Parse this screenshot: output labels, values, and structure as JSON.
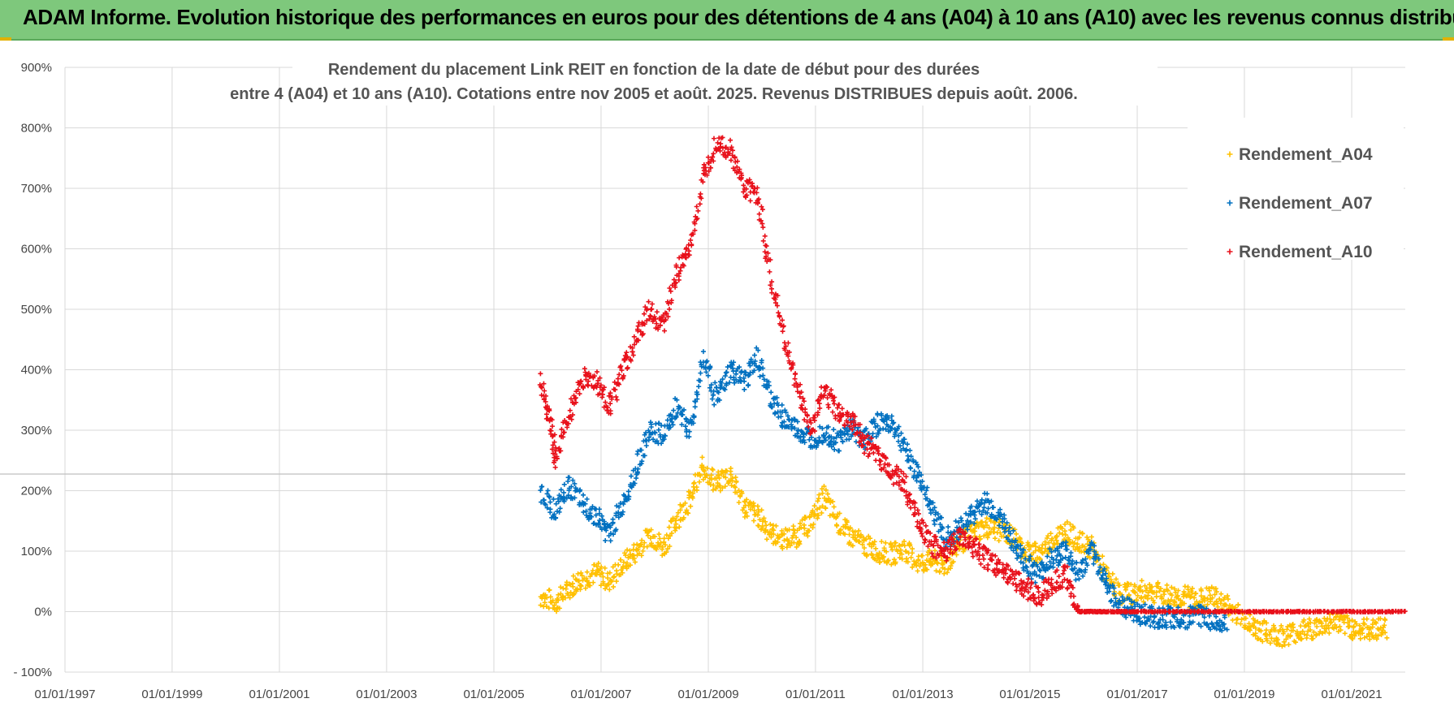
{
  "banner": {
    "title": "ADAM Informe. Evolution historique des performances en euros pour des détentions de 4 ans (A04) à 10 ans (A10) avec les revenus connus distribués"
  },
  "colors": {
    "banner_bg": "#7ec87c",
    "A04": "#ffc000",
    "A07": "#0070c0",
    "A10": "#e8101a",
    "grid": "#d9d9d9"
  },
  "chart_data": {
    "type": "scatter",
    "title_lines": [
      "Rendement du placement Link REIT en fonction de la date de début pour des durées",
      "entre 4 (A04) et 10 ans (A10).  Cotations entre nov 2005 et août. 2025. Revenus DISTRIBUES depuis août. 2006."
    ],
    "x_type": "date",
    "x_range": [
      "1997-01-01",
      "2022-01-01"
    ],
    "x_tick_labels": [
      "01/01/1997",
      "01/01/1999",
      "01/01/2001",
      "01/01/2003",
      "01/01/2005",
      "01/01/2007",
      "01/01/2009",
      "01/01/2011",
      "01/01/2013",
      "01/01/2015",
      "01/01/2017",
      "01/01/2019",
      "01/01/2021"
    ],
    "y_range": [
      -100,
      900
    ],
    "y_tick_labels": [
      "- 100%",
      "0%",
      "100%",
      "200%",
      "300%",
      "400%",
      "500%",
      "600%",
      "700%",
      "800%",
      "900%"
    ],
    "y_unit": "%",
    "grid": true,
    "legend_position": "right",
    "marker": "+",
    "series": [
      {
        "name": "Rendement_A04",
        "color": "#ffc000",
        "points": [
          [
            "2005-11-15",
            25
          ],
          [
            "2006-03-01",
            15
          ],
          [
            "2006-06-01",
            40
          ],
          [
            "2006-09-01",
            55
          ],
          [
            "2006-12-01",
            65
          ],
          [
            "2007-03-01",
            50
          ],
          [
            "2007-06-01",
            80
          ],
          [
            "2007-09-01",
            100
          ],
          [
            "2007-12-01",
            130
          ],
          [
            "2008-03-01",
            105
          ],
          [
            "2008-06-01",
            155
          ],
          [
            "2008-09-01",
            185
          ],
          [
            "2008-12-01",
            240
          ],
          [
            "2009-03-01",
            210
          ],
          [
            "2009-06-01",
            230
          ],
          [
            "2009-09-01",
            175
          ],
          [
            "2009-12-01",
            160
          ],
          [
            "2010-03-01",
            130
          ],
          [
            "2010-06-01",
            120
          ],
          [
            "2010-09-01",
            125
          ],
          [
            "2010-12-01",
            150
          ],
          [
            "2011-03-01",
            190
          ],
          [
            "2011-06-01",
            150
          ],
          [
            "2011-09-01",
            125
          ],
          [
            "2011-12-01",
            110
          ],
          [
            "2012-03-01",
            100
          ],
          [
            "2012-06-01",
            95
          ],
          [
            "2012-09-01",
            105
          ],
          [
            "2012-12-01",
            80
          ],
          [
            "2013-03-01",
            85
          ],
          [
            "2013-06-01",
            75
          ],
          [
            "2013-09-01",
            110
          ],
          [
            "2013-12-01",
            130
          ],
          [
            "2014-03-01",
            140
          ],
          [
            "2014-06-01",
            135
          ],
          [
            "2014-09-01",
            125
          ],
          [
            "2014-12-01",
            100
          ],
          [
            "2015-03-01",
            95
          ],
          [
            "2015-06-01",
            120
          ],
          [
            "2015-09-01",
            135
          ],
          [
            "2015-12-01",
            115
          ],
          [
            "2016-03-01",
            105
          ],
          [
            "2016-06-01",
            60
          ],
          [
            "2016-09-01",
            30
          ],
          [
            "2016-12-01",
            30
          ],
          [
            "2017-03-01",
            35
          ],
          [
            "2017-06-01",
            30
          ],
          [
            "2017-09-01",
            25
          ],
          [
            "2017-12-01",
            25
          ],
          [
            "2018-03-01",
            20
          ],
          [
            "2018-06-01",
            25
          ],
          [
            "2018-09-01",
            10
          ],
          [
            "2018-12-01",
            -5
          ],
          [
            "2019-03-01",
            -25
          ],
          [
            "2019-06-01",
            -35
          ],
          [
            "2019-09-01",
            -40
          ],
          [
            "2019-12-01",
            -35
          ],
          [
            "2020-03-01",
            -30
          ],
          [
            "2020-06-01",
            -25
          ],
          [
            "2020-09-01",
            -15
          ],
          [
            "2020-12-01",
            -25
          ],
          [
            "2021-03-01",
            -30
          ],
          [
            "2021-06-01",
            -28
          ],
          [
            "2021-09-01",
            -27
          ]
        ]
      },
      {
        "name": "Rendement_A07",
        "color": "#0070c0",
        "points": [
          [
            "2005-11-15",
            200
          ],
          [
            "2006-03-01",
            165
          ],
          [
            "2006-06-01",
            210
          ],
          [
            "2006-09-01",
            175
          ],
          [
            "2006-12-01",
            160
          ],
          [
            "2007-03-01",
            125
          ],
          [
            "2007-06-01",
            180
          ],
          [
            "2007-09-01",
            240
          ],
          [
            "2007-12-01",
            300
          ],
          [
            "2008-03-01",
            290
          ],
          [
            "2008-06-01",
            340
          ],
          [
            "2008-09-01",
            300
          ],
          [
            "2008-12-01",
            420
          ],
          [
            "2009-03-01",
            350
          ],
          [
            "2009-06-01",
            400
          ],
          [
            "2009-09-01",
            380
          ],
          [
            "2009-12-01",
            420
          ],
          [
            "2010-03-01",
            350
          ],
          [
            "2010-06-01",
            320
          ],
          [
            "2010-09-01",
            300
          ],
          [
            "2010-12-01",
            285
          ],
          [
            "2011-03-01",
            300
          ],
          [
            "2011-06-01",
            280
          ],
          [
            "2011-09-01",
            305
          ],
          [
            "2011-12-01",
            285
          ],
          [
            "2012-03-01",
            310
          ],
          [
            "2012-06-01",
            315
          ],
          [
            "2012-09-01",
            270
          ],
          [
            "2012-12-01",
            225
          ],
          [
            "2013-03-01",
            175
          ],
          [
            "2013-06-01",
            120
          ],
          [
            "2013-09-01",
            135
          ],
          [
            "2013-12-01",
            160
          ],
          [
            "2014-03-01",
            180
          ],
          [
            "2014-06-01",
            160
          ],
          [
            "2014-09-01",
            120
          ],
          [
            "2014-12-01",
            80
          ],
          [
            "2015-03-01",
            60
          ],
          [
            "2015-06-01",
            90
          ],
          [
            "2015-09-01",
            100
          ],
          [
            "2015-12-01",
            60
          ],
          [
            "2016-03-01",
            100
          ],
          [
            "2016-06-01",
            50
          ],
          [
            "2016-09-01",
            10
          ],
          [
            "2016-12-01",
            0
          ],
          [
            "2017-03-01",
            -5
          ],
          [
            "2017-06-01",
            -10
          ],
          [
            "2017-09-01",
            -8
          ],
          [
            "2017-12-01",
            -12
          ],
          [
            "2018-03-01",
            -5
          ],
          [
            "2018-06-01",
            -15
          ],
          [
            "2018-09-01",
            -18
          ]
        ]
      },
      {
        "name": "Rendement_A10",
        "color": "#e8101a",
        "points": [
          [
            "2005-11-15",
            390
          ],
          [
            "2006-01-15",
            320
          ],
          [
            "2006-03-01",
            250
          ],
          [
            "2006-06-01",
            330
          ],
          [
            "2006-09-01",
            385
          ],
          [
            "2006-12-01",
            380
          ],
          [
            "2007-03-01",
            340
          ],
          [
            "2007-06-01",
            400
          ],
          [
            "2007-09-01",
            450
          ],
          [
            "2007-12-01",
            500
          ],
          [
            "2008-03-01",
            470
          ],
          [
            "2008-06-01",
            560
          ],
          [
            "2008-09-01",
            600
          ],
          [
            "2008-12-01",
            720
          ],
          [
            "2009-03-01",
            780
          ],
          [
            "2009-06-01",
            760
          ],
          [
            "2009-09-01",
            700
          ],
          [
            "2009-12-01",
            690
          ],
          [
            "2010-03-01",
            560
          ],
          [
            "2010-06-01",
            450
          ],
          [
            "2010-09-01",
            370
          ],
          [
            "2010-12-01",
            300
          ],
          [
            "2011-03-01",
            370
          ],
          [
            "2011-06-01",
            330
          ],
          [
            "2011-09-01",
            320
          ],
          [
            "2011-12-01",
            280
          ],
          [
            "2012-03-01",
            260
          ],
          [
            "2012-06-01",
            230
          ],
          [
            "2012-09-01",
            210
          ],
          [
            "2012-12-01",
            150
          ],
          [
            "2013-03-01",
            110
          ],
          [
            "2013-06-01",
            100
          ],
          [
            "2013-09-01",
            120
          ],
          [
            "2013-12-01",
            110
          ],
          [
            "2014-03-01",
            90
          ],
          [
            "2014-06-01",
            70
          ],
          [
            "2014-09-01",
            60
          ],
          [
            "2014-12-01",
            40
          ],
          [
            "2015-03-01",
            25
          ],
          [
            "2015-06-01",
            45
          ],
          [
            "2015-09-01",
            60
          ],
          [
            "2015-12-01",
            0
          ],
          [
            "2016-06-01",
            0
          ],
          [
            "2017-01-01",
            0
          ],
          [
            "2018-01-01",
            0
          ],
          [
            "2019-01-01",
            0
          ],
          [
            "2020-01-01",
            0
          ],
          [
            "2021-01-01",
            0
          ],
          [
            "2021-12-31",
            0
          ]
        ]
      }
    ]
  }
}
